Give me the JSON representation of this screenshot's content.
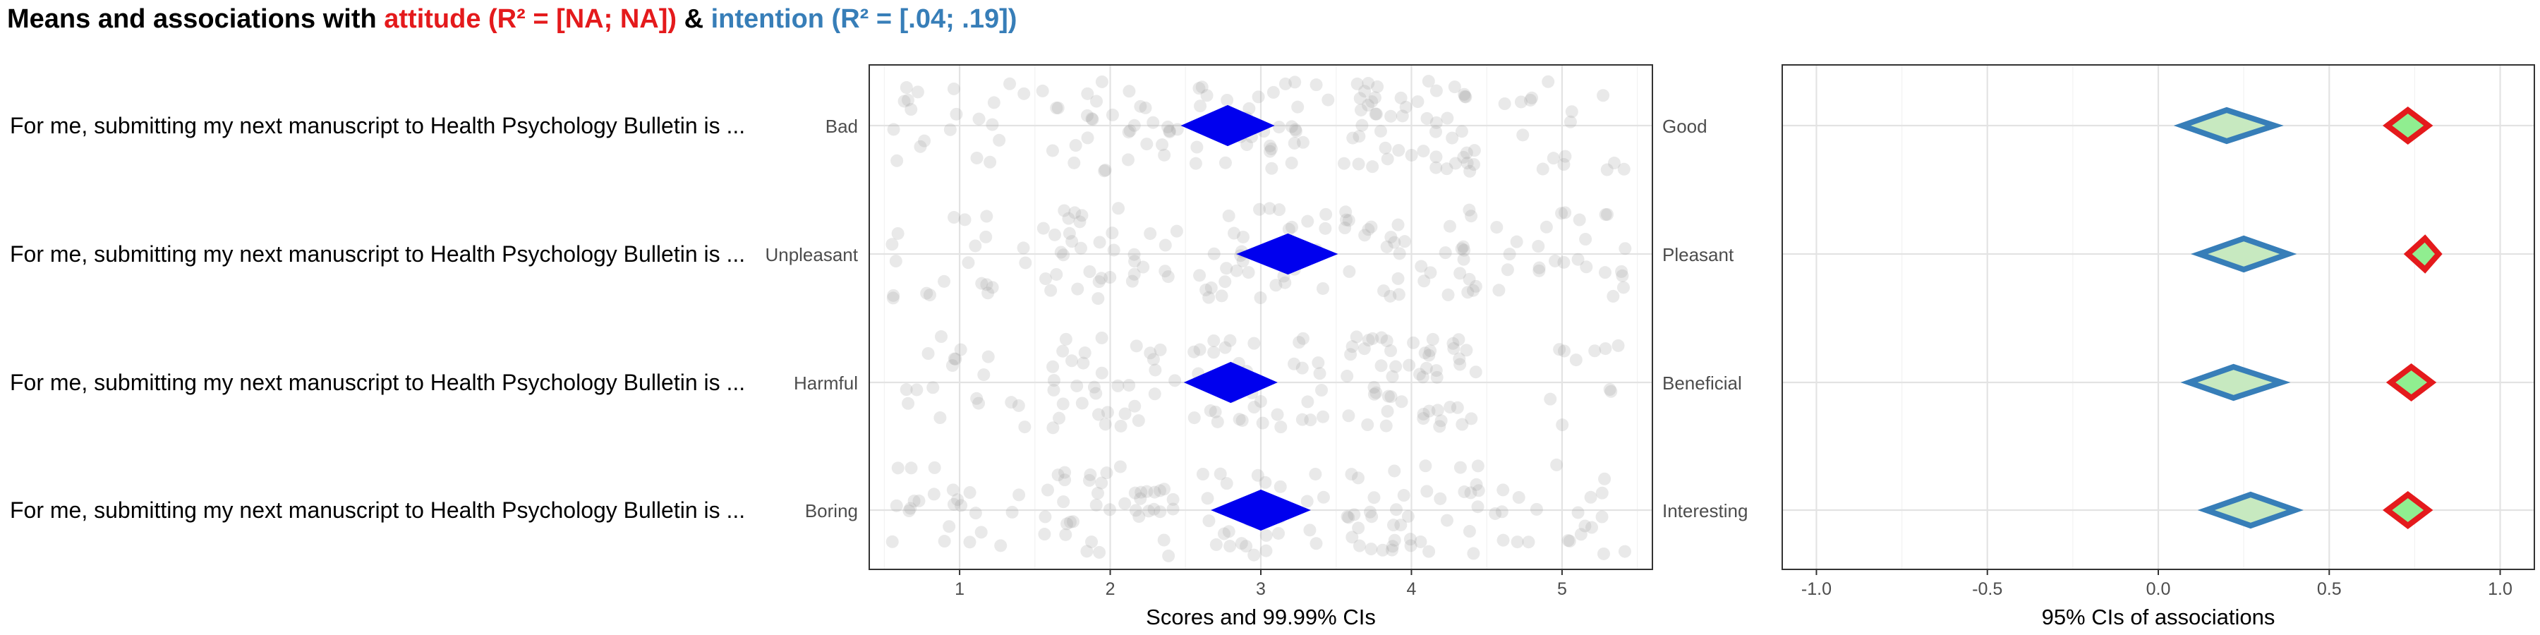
{
  "title": {
    "prefix": "Means and associations with ",
    "attitude_text": "attitude (R² = [NA; NA])",
    "joiner": " & ",
    "intention_text": "intention (R² = [.04; .19])",
    "attitude_color": "#e41a1c",
    "intention_color": "#377eb8"
  },
  "chart_data": [
    {
      "type": "scatter",
      "panel": "scores",
      "xlabel": "Scores and 99.99% CIs",
      "xlim": [
        0.4,
        5.6
      ],
      "xticks": [
        1,
        2,
        3,
        4,
        5
      ],
      "grid": true,
      "items": [
        {
          "label": "For me, submitting my next manuscript to Health Psychology Bulletin is ...",
          "left_anchor": "Bad",
          "right_anchor": "Good",
          "mean": 2.78,
          "ci": [
            2.48,
            3.08
          ]
        },
        {
          "label": "For me, submitting my next manuscript to Health Psychology Bulletin is ...",
          "left_anchor": "Unpleasant",
          "right_anchor": "Pleasant",
          "mean": 3.18,
          "ci": [
            2.85,
            3.5
          ]
        },
        {
          "label": "For me, submitting my next manuscript to Health Psychology Bulletin is ...",
          "left_anchor": "Harmful",
          "right_anchor": "Beneficial",
          "mean": 2.8,
          "ci": [
            2.5,
            3.1
          ]
        },
        {
          "label": "For me, submitting my next manuscript to Health Psychology Bulletin is ...",
          "left_anchor": "Boring",
          "right_anchor": "Interesting",
          "mean": 3.0,
          "ci": [
            2.68,
            3.32
          ]
        }
      ],
      "diamond_color": "#0000ee",
      "point_color": "#999999"
    },
    {
      "type": "scatter",
      "panel": "associations",
      "xlabel": "95% CIs of associations",
      "xlim": [
        -1.1,
        1.1
      ],
      "xticks": [
        -1.0,
        -0.5,
        0.0,
        0.5,
        1.0
      ],
      "tick_labels": [
        "-1.0",
        "-0.5",
        "0.0",
        "0.5",
        "1.0"
      ],
      "grid": true,
      "series": [
        {
          "target": "intention",
          "color": "#377eb8",
          "fill": "#c7e9c0",
          "values": [
            {
              "est": 0.2,
              "ci": [
                0.07,
                0.34
              ]
            },
            {
              "est": 0.25,
              "ci": [
                0.12,
                0.38
              ]
            },
            {
              "est": 0.22,
              "ci": [
                0.09,
                0.36
              ]
            },
            {
              "est": 0.27,
              "ci": [
                0.14,
                0.4
              ]
            }
          ]
        },
        {
          "target": "attitude",
          "color": "#e41a1c",
          "fill": "#90ee90",
          "values": [
            {
              "est": 0.73,
              "ci": [
                0.67,
                0.79
              ]
            },
            {
              "est": 0.78,
              "ci": [
                0.73,
                0.82
              ]
            },
            {
              "est": 0.74,
              "ci": [
                0.68,
                0.8
              ]
            },
            {
              "est": 0.73,
              "ci": [
                0.67,
                0.79
              ]
            }
          ]
        }
      ]
    }
  ]
}
